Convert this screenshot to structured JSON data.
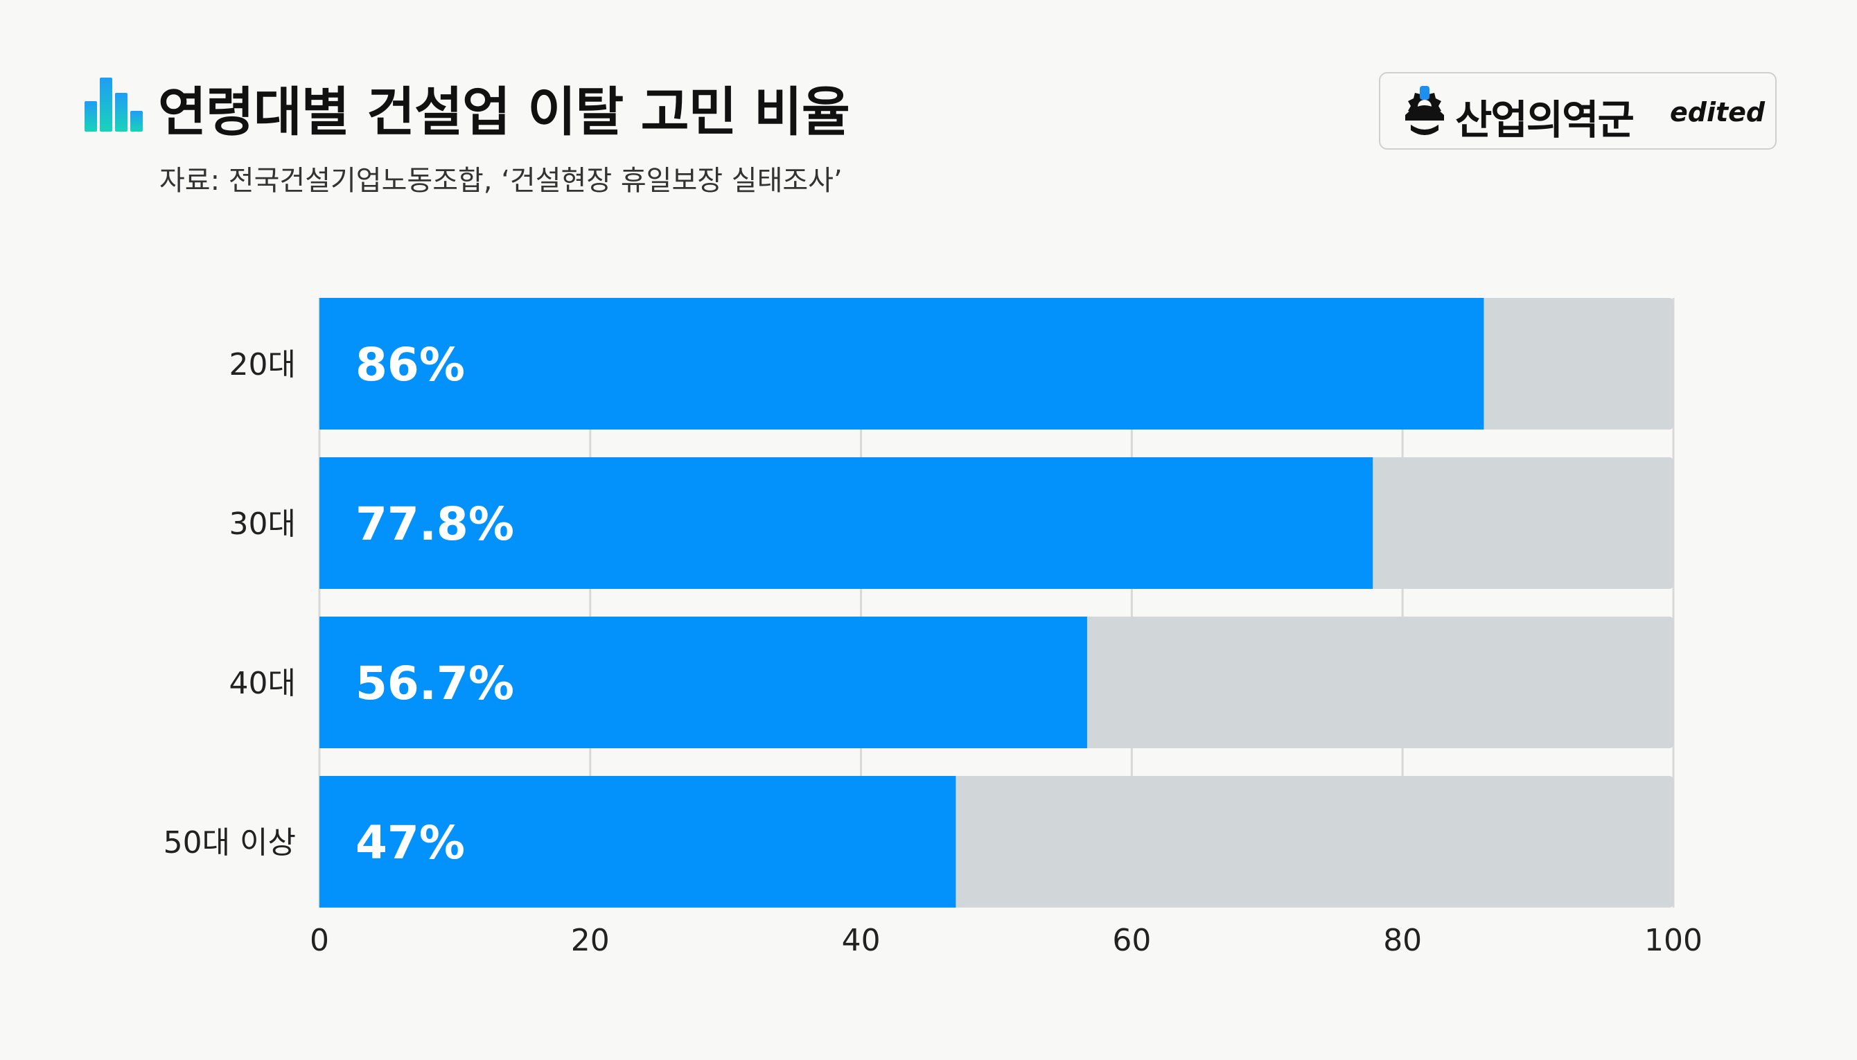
{
  "header": {
    "title": "연령대별 건설업 이탈 고민 비율",
    "subtitle": "자료: 전국건설기업노동조합, ‘건설현장 휴일보장 실태조사’"
  },
  "brand": {
    "name": "산업의역군",
    "tag": "edited"
  },
  "colors": {
    "bar": "#0392fb",
    "track": "#d1d6d9",
    "grid": "#d8d8d8",
    "icon_gradient": [
      "#1f9df5",
      "#19d3b8"
    ]
  },
  "chart_data": {
    "type": "bar",
    "orientation": "horizontal",
    "stacked_to_100": true,
    "categories": [
      "20대",
      "30대",
      "40대",
      "50대 이상"
    ],
    "values": [
      86,
      77.8,
      56.7,
      47
    ],
    "value_labels": [
      "86%",
      "77.8%",
      "56.7%",
      "47%"
    ],
    "xlim": [
      0,
      100
    ],
    "xticks": [
      0,
      20,
      40,
      60,
      80,
      100
    ],
    "grid": true,
    "legend": "none"
  }
}
